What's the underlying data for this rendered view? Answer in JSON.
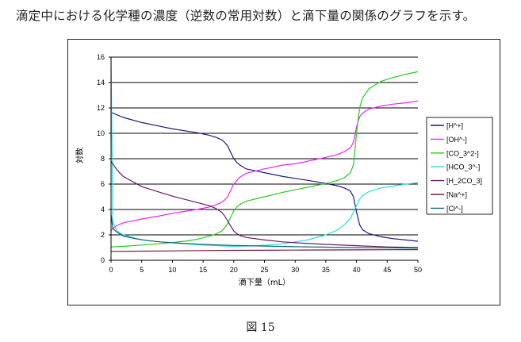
{
  "intro_text": "滴定中における化学種の濃度（逆数の常用対数）と滴下量の関係のグラフを示す。",
  "figure_caption": "図 15",
  "chart_data": {
    "type": "line",
    "title": "",
    "xlabel": "滴下量（mL）",
    "ylabel": "対数",
    "xlim": [
      0,
      50
    ],
    "ylim": [
      0,
      16
    ],
    "xticks": [
      0,
      5,
      10,
      15,
      20,
      25,
      30,
      35,
      40,
      45,
      50
    ],
    "yticks": [
      0,
      2,
      4,
      6,
      8,
      10,
      12,
      14,
      16
    ],
    "grid": "horizontal",
    "legend_position": "right",
    "series": [
      {
        "name": "[H^+]",
        "color": "#1a1a7a",
        "x": [
          0,
          2,
          5,
          8,
          10,
          12,
          14,
          16,
          17,
          18,
          18.5,
          19,
          19.5,
          20,
          20.5,
          21,
          22,
          25,
          28,
          30,
          32,
          35,
          37,
          38,
          39,
          39.5,
          40,
          40.5,
          41,
          42,
          44,
          46,
          48,
          50
        ],
        "y": [
          11.65,
          11.25,
          10.85,
          10.55,
          10.35,
          10.2,
          10.05,
          9.85,
          9.7,
          9.5,
          9.3,
          9.0,
          8.5,
          8.0,
          7.7,
          7.5,
          7.2,
          6.9,
          6.6,
          6.45,
          6.3,
          6.05,
          5.85,
          5.7,
          5.45,
          5.0,
          3.8,
          2.8,
          2.4,
          2.1,
          1.85,
          1.7,
          1.6,
          1.5
        ]
      },
      {
        "name": "[OH^-]",
        "color": "#ee22ee",
        "x": [
          0,
          0.3,
          1,
          2,
          5,
          8,
          10,
          12,
          14,
          16,
          17,
          18,
          18.5,
          19,
          19.5,
          20,
          20.5,
          21,
          22,
          25,
          28,
          30,
          32,
          35,
          37,
          38,
          39,
          39.5,
          40,
          40.5,
          41,
          42,
          44,
          46,
          48,
          50
        ],
        "y": [
          2.3,
          2.5,
          2.75,
          2.95,
          3.25,
          3.5,
          3.7,
          3.85,
          4.0,
          4.2,
          4.35,
          4.55,
          4.75,
          5.0,
          5.5,
          6.0,
          6.3,
          6.55,
          6.85,
          7.2,
          7.5,
          7.6,
          7.8,
          8.1,
          8.35,
          8.55,
          8.85,
          9.3,
          10.5,
          11.3,
          11.6,
          11.9,
          12.15,
          12.3,
          12.4,
          12.55
        ]
      },
      {
        "name": "[CO_3^2-]",
        "color": "#22cc22",
        "x": [
          0,
          2,
          5,
          8,
          10,
          12,
          14,
          16,
          17,
          18,
          18.5,
          19,
          19.5,
          20,
          20.5,
          21,
          22,
          25,
          28,
          30,
          32,
          35,
          37,
          38,
          39,
          39.5,
          40,
          40.5,
          41,
          42,
          44,
          46,
          48,
          50
        ],
        "y": [
          1.05,
          1.1,
          1.2,
          1.3,
          1.4,
          1.5,
          1.65,
          1.9,
          2.05,
          2.3,
          2.55,
          2.9,
          3.4,
          3.9,
          4.2,
          4.4,
          4.65,
          5.0,
          5.35,
          5.55,
          5.75,
          6.05,
          6.3,
          6.5,
          6.9,
          7.5,
          10.0,
          12.0,
          12.8,
          13.5,
          14.1,
          14.4,
          14.65,
          14.85
        ]
      },
      {
        "name": "[HCO_3^-]",
        "color": "#22dddd",
        "x": [
          0,
          0.3,
          1,
          2,
          5,
          8,
          10,
          12,
          15,
          18,
          20,
          22,
          25,
          28,
          30,
          32,
          35,
          37,
          38,
          39,
          39.5,
          40,
          40.5,
          41,
          42,
          44,
          46,
          48,
          50
        ],
        "y": [
          16.0,
          3.0,
          2.3,
          2.0,
          1.6,
          1.45,
          1.38,
          1.3,
          1.2,
          1.13,
          1.1,
          1.12,
          1.18,
          1.3,
          1.45,
          1.6,
          2.0,
          2.4,
          2.8,
          3.3,
          3.8,
          4.3,
          4.8,
          5.1,
          5.4,
          5.7,
          5.85,
          6.0,
          6.1
        ]
      },
      {
        "name": "[H_2CO_3]",
        "color": "#6a1a6a",
        "x": [
          0,
          1,
          2,
          5,
          8,
          10,
          12,
          14,
          16,
          17,
          18,
          18.5,
          19,
          19.5,
          20,
          20.5,
          21,
          22,
          25,
          28,
          30,
          35,
          40,
          45,
          50
        ],
        "y": [
          7.8,
          7.1,
          6.6,
          5.8,
          5.35,
          5.05,
          4.8,
          4.55,
          4.3,
          4.1,
          3.8,
          3.5,
          3.1,
          2.7,
          2.3,
          2.1,
          1.95,
          1.8,
          1.6,
          1.45,
          1.38,
          1.25,
          1.15,
          1.05,
          1.0
        ]
      },
      {
        "name": "[Na^+]",
        "color": "#7a1a3a",
        "x": [
          0,
          5,
          10,
          15,
          20,
          25,
          30,
          35,
          40,
          45,
          50
        ],
        "y": [
          0.7,
          0.72,
          0.74,
          0.76,
          0.78,
          0.79,
          0.8,
          0.81,
          0.82,
          0.83,
          0.84
        ]
      },
      {
        "name": "[Cl^-]",
        "color": "#116677",
        "x": [
          0,
          0.3,
          1,
          2,
          4,
          6,
          8,
          10,
          12,
          15,
          18,
          20,
          25,
          30,
          35,
          40,
          45,
          50
        ],
        "y": [
          3.6,
          2.5,
          2.2,
          1.9,
          1.7,
          1.55,
          1.45,
          1.38,
          1.32,
          1.25,
          1.2,
          1.17,
          1.12,
          1.07,
          1.03,
          1.0,
          0.98,
          0.95
        ]
      }
    ]
  }
}
